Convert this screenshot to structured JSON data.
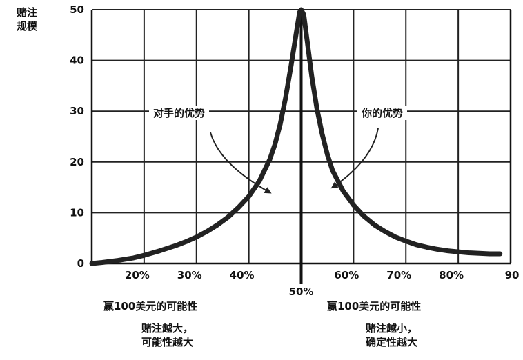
{
  "chart_data": {
    "type": "line",
    "ylabel_lines": [
      "赌注",
      "规模"
    ],
    "ylim": [
      0,
      50
    ],
    "y_ticks": [
      "0",
      "10",
      "20",
      "30",
      "40",
      "50"
    ],
    "y_tick_values": [
      0,
      10,
      20,
      30,
      40,
      50
    ],
    "x_range": [
      10,
      90
    ],
    "x_ticks": [
      {
        "label": "20%",
        "value": 20
      },
      {
        "label": "30%",
        "value": 30
      },
      {
        "label": "40%",
        "value": 40
      },
      {
        "label": "50%",
        "value": 50
      },
      {
        "label": "60%",
        "value": 60
      },
      {
        "label": "70%",
        "value": 70
      },
      {
        "label": "80%",
        "value": 80
      },
      {
        "label": "90",
        "value": 90
      }
    ],
    "grid": true,
    "series": [
      {
        "x": [
          10,
          12,
          15,
          18,
          20,
          23,
          26,
          28,
          30,
          32,
          34,
          36,
          38,
          40,
          42,
          44,
          45,
          46,
          47,
          48,
          49,
          49.7,
          50,
          50.5,
          51,
          52,
          53,
          54,
          55,
          56,
          58,
          60,
          62,
          64,
          66,
          68,
          70,
          72,
          74,
          76,
          78,
          80,
          82,
          84,
          86,
          88
        ],
        "y": [
          0,
          0.2,
          0.6,
          1.1,
          1.6,
          2.5,
          3.5,
          4.3,
          5.2,
          6.3,
          7.6,
          9.1,
          11,
          13.2,
          16.2,
          20.5,
          23.5,
          27.5,
          32.5,
          38.5,
          45,
          49.5,
          50,
          49,
          45,
          37,
          30.5,
          25.5,
          21.5,
          18.3,
          14.3,
          11.5,
          9.3,
          7.6,
          6.3,
          5.2,
          4.4,
          3.7,
          3.2,
          2.8,
          2.5,
          2.3,
          2.1,
          2.0,
          1.9,
          1.9
        ]
      }
    ],
    "annotations": [
      {
        "text": "对手的优势",
        "arrow_to": [
          44,
          14
        ]
      },
      {
        "text": "你的优势",
        "arrow_to": [
          56,
          15
        ]
      }
    ]
  },
  "bottom_captions": {
    "left": {
      "title": "赢100美元的可能性",
      "line1": "赌注越大，",
      "line2": "可能性越大"
    },
    "right": {
      "title": "赢100美元的可能性",
      "line1": "赌注越小，",
      "line2": "确定性越大"
    }
  }
}
